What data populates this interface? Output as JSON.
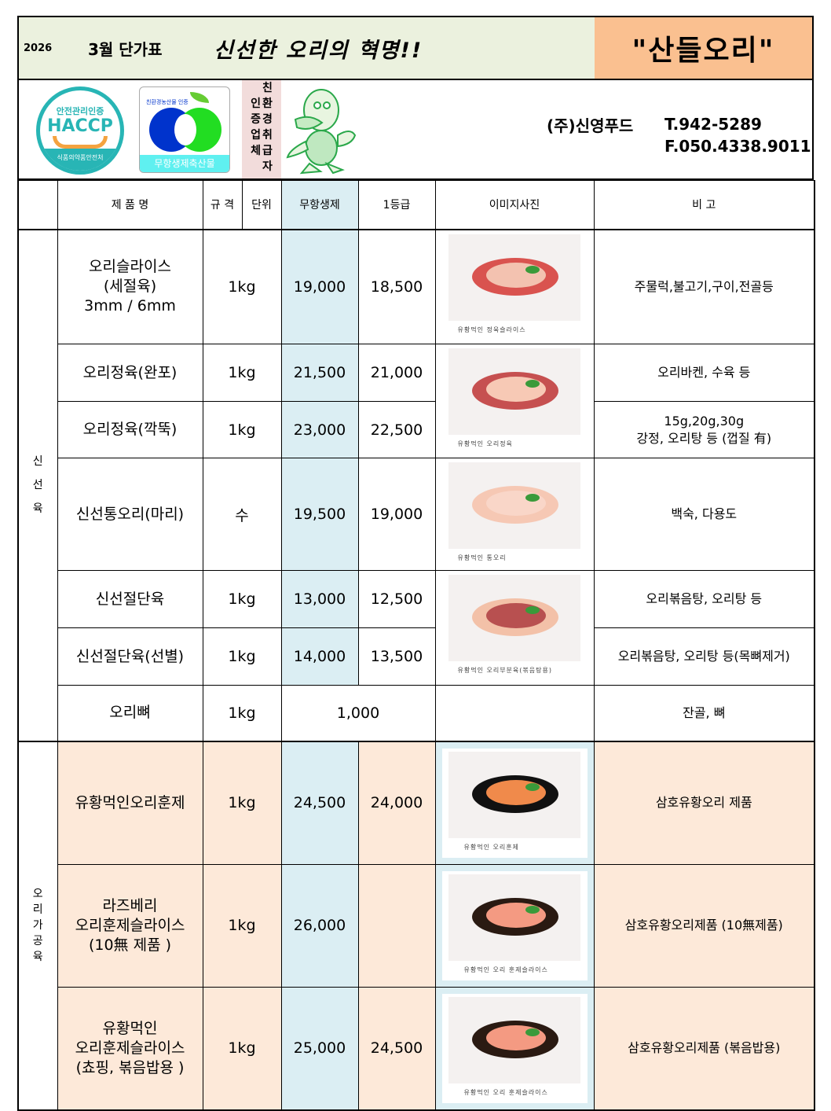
{
  "header": {
    "year": "2026",
    "month_title": "3월 단가표",
    "slogan": "신선한 오리의 혁명!!",
    "brand": "\"산들오리\""
  },
  "logos": {
    "haccp": {
      "top": "안전관리인증",
      "main": "HACCP",
      "bottom": "식품의약품안전처"
    },
    "eco": {
      "arc": "친환경농산물  인증",
      "tag": "무항생제축산물"
    },
    "cert_col1": [
      "인",
      "증",
      "업",
      "체"
    ],
    "cert_col2": [
      "친",
      "환",
      "경",
      "취",
      "급",
      "자"
    ]
  },
  "company": {
    "name": "(주)신영푸드",
    "tel": "T.942-5289",
    "fax": "F.050.4338.9011"
  },
  "columns": {
    "name": "제 품 명",
    "spec": "규  격",
    "unit": "단위",
    "antibiotic_free": "무항생제",
    "grade1": "1등급",
    "image": "이미지사진",
    "remark": "비    고"
  },
  "sections": {
    "fresh": [
      "신",
      "선",
      "육"
    ],
    "processed": [
      "오",
      "리",
      "가",
      "공",
      "육"
    ]
  },
  "rows": [
    {
      "name": "오리슬라이스\n(세절육)\n3mm / 6mm",
      "spec": "1kg",
      "afree": "19,000",
      "g1": "18,500",
      "remark": "주물럭,불고기,구이,전골등"
    },
    {
      "name": "오리정육(완포)",
      "spec": "1kg",
      "afree": "21,500",
      "g1": "21,000",
      "remark": "오리바켄, 수육 등"
    },
    {
      "name": "오리정육(깍뚝)",
      "spec": "1kg",
      "afree": "23,000",
      "g1": "22,500",
      "remark": "15g,20g,30g\n강정, 오리탕 등 (껍질 有)"
    },
    {
      "name": "신선통오리(마리)",
      "spec": "수",
      "afree": "19,500",
      "g1": "19,000",
      "remark": "백숙, 다용도"
    },
    {
      "name": "신선절단육",
      "spec": "1kg",
      "afree": "13,000",
      "g1": "12,500",
      "remark": "오리볶음탕, 오리탕 등"
    },
    {
      "name": "신선절단육(선별)",
      "spec": "1kg",
      "afree": "14,000",
      "g1": "13,500",
      "remark": "오리볶음탕, 오리탕 등(목뼈제거)"
    },
    {
      "name": "오리뼈",
      "spec": "1kg",
      "price": "1,000",
      "remark": "잔골, 뼈"
    },
    {
      "name": "유황먹인오리훈제",
      "spec": "1kg",
      "afree": "24,500",
      "g1": "24,000",
      "remark": "삼호유황오리 제품"
    },
    {
      "name": "라즈베리\n오리훈제슬라이스\n(10無 제품 )",
      "spec": "1kg",
      "afree": "26,000",
      "g1": "",
      "remark": "삼호유황오리제품 (10無제품)"
    },
    {
      "name": "유황먹인\n오리훈제슬라이스\n(쵸핑, 볶음밥용 )",
      "spec": "1kg",
      "afree": "25,000",
      "g1": "24,500",
      "remark": "삼호유황오리제품 (볶음밥용)"
    }
  ],
  "photos": [
    {
      "caption": "유황먹인 정육슬라이스"
    },
    {
      "caption": "유황먹인 오리정육"
    },
    {
      "caption": "유황먹인 통오리"
    },
    {
      "caption": "유황먹인 오리부분육(볶음탕용)"
    },
    {
      "caption": "유황먹인 오리훈제"
    },
    {
      "caption": "유황먹인 오리 훈제슬라이스"
    },
    {
      "caption": "유황먹인 오리 훈제슬라이스"
    }
  ],
  "colors": {
    "header_left": "#ebf1de",
    "brand_bg": "#fac090",
    "antibiotic_free_col": "#dbeef3",
    "processed_rows": "#fde9d9",
    "cert_bg": "#f2dcdb"
  }
}
